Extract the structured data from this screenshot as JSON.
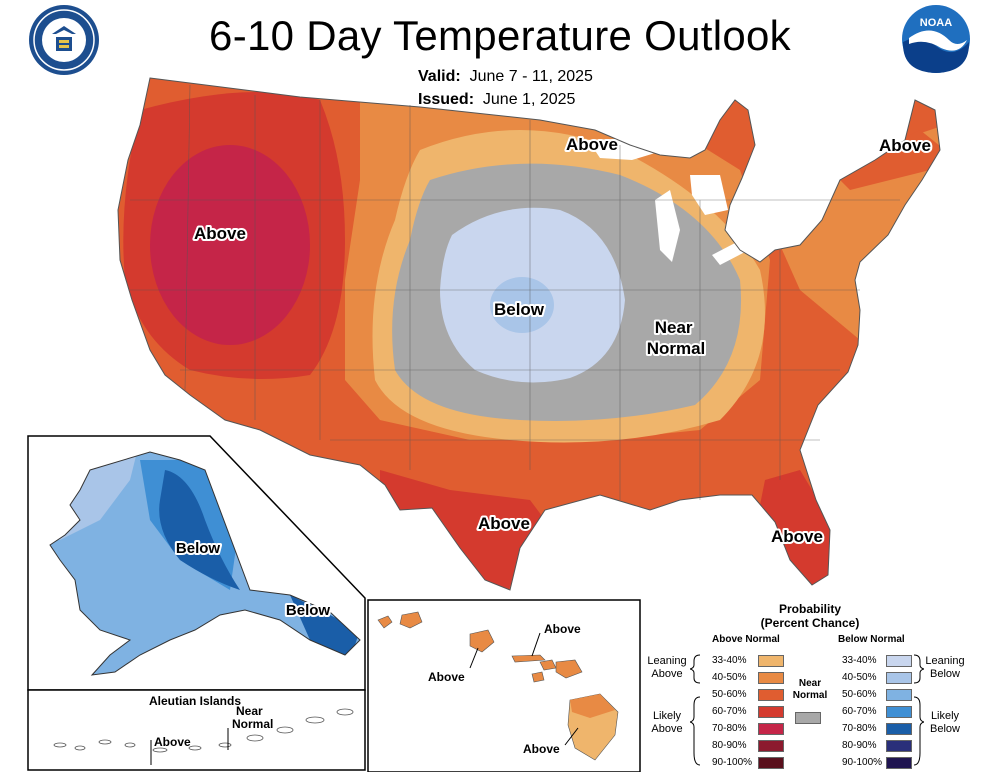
{
  "header": {
    "title": "6-10 Day Temperature Outlook",
    "valid_label": "Valid:",
    "valid_value": "June 7 - 11, 2025",
    "issued_label": "Issued:",
    "issued_value": "June 1, 2025",
    "left_logo": "department-of-commerce-seal",
    "right_logo": "noaa-logo",
    "noaa_text": "NOAA"
  },
  "map": {
    "region_labels": {
      "west": "Above",
      "north_central": "Above",
      "northeast": "Above",
      "central": "Below",
      "midwest": "Near Normal",
      "texas": "Above",
      "florida": "Above"
    },
    "alaska": {
      "interior": "Below",
      "southeast": "Below"
    },
    "aleutians": {
      "title": "Aleutian Islands",
      "above": "Above",
      "near_normal": "Near Normal"
    },
    "hawaii": {
      "label_east": "Above",
      "label_west": "Above",
      "label_big_island": "Above"
    }
  },
  "legend": {
    "title_line1": "Probability",
    "title_line2": "(Percent Chance)",
    "above_header": "Above Normal",
    "below_header": "Below Normal",
    "near_normal_label": "Near Normal",
    "near_normal_color": "#a8a8a8",
    "above_groups": [
      {
        "label": "Leaning Above"
      },
      {
        "label": "Likely Above"
      }
    ],
    "below_groups": [
      {
        "label": "Leaning Below"
      },
      {
        "label": "Likely Below"
      }
    ],
    "above_bins": [
      {
        "range": "33-40%",
        "color": "#efb56c"
      },
      {
        "range": "40-50%",
        "color": "#e88a44"
      },
      {
        "range": "50-60%",
        "color": "#e05d30"
      },
      {
        "range": "60-70%",
        "color": "#d43a2e"
      },
      {
        "range": "70-80%",
        "color": "#c52548"
      },
      {
        "range": "80-90%",
        "color": "#8c1a2e"
      },
      {
        "range": "90-100%",
        "color": "#5a0f1c"
      }
    ],
    "below_bins": [
      {
        "range": "33-40%",
        "color": "#c9d6ee"
      },
      {
        "range": "40-50%",
        "color": "#a9c5e8"
      },
      {
        "range": "50-60%",
        "color": "#7fb2e2"
      },
      {
        "range": "60-70%",
        "color": "#3f8fd4"
      },
      {
        "range": "70-80%",
        "color": "#1a5ea8"
      },
      {
        "range": "80-90%",
        "color": "#2a2f7a"
      },
      {
        "range": "90-100%",
        "color": "#1f1450"
      }
    ]
  }
}
